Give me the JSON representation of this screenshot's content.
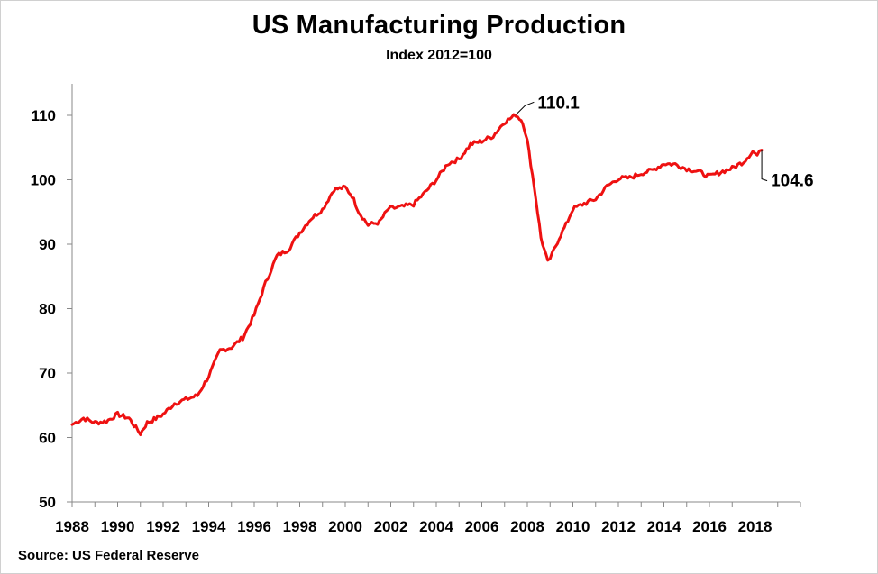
{
  "title": "US Manufacturing Production",
  "subtitle": "Index 2012=100",
  "source": "Source: US Federal Reserve",
  "chart_data": {
    "type": "line",
    "title": "US Manufacturing Production",
    "subtitle": "Index 2012=100",
    "xlabel": "",
    "ylabel": "",
    "xlim": [
      1988,
      2020
    ],
    "ylim": [
      50,
      115
    ],
    "y_ticks": [
      50,
      60,
      70,
      80,
      90,
      100,
      110
    ],
    "x_tick_labels": [
      "1988",
      "1990",
      "1992",
      "1994",
      "1996",
      "1998",
      "2000",
      "2002",
      "2004",
      "2006",
      "2008",
      "2010",
      "2012",
      "2014",
      "2016",
      "2018"
    ],
    "grid": false,
    "legend": "none",
    "line_color": "#ee1111",
    "series": [
      {
        "x": [
          1988.0,
          1988.5,
          1989.0,
          1989.5,
          1990.0,
          1990.5,
          1990.8,
          1991.0,
          1991.3,
          1991.6,
          1992.0,
          1992.5,
          1993.0,
          1993.5,
          1994.0,
          1994.5,
          1995.0,
          1995.5,
          1996.0,
          1996.5,
          1997.0,
          1997.5,
          1998.0,
          1998.5,
          1999.0,
          1999.5,
          2000.0,
          2000.3,
          2000.6,
          2001.0,
          2001.5,
          2001.9,
          2002.5,
          2003.0,
          2003.5,
          2004.0,
          2004.5,
          2005.0,
          2005.5,
          2006.0,
          2006.5,
          2007.0,
          2007.3,
          2007.5,
          2007.8,
          2008.0,
          2008.3,
          2008.6,
          2008.9,
          2009.1,
          2009.4,
          2009.7,
          2010.0,
          2010.5,
          2011.0,
          2011.5,
          2012.0,
          2012.5,
          2013.0,
          2013.5,
          2014.0,
          2014.5,
          2015.0,
          2015.5,
          2016.0,
          2016.5,
          2017.0,
          2017.5,
          2017.9,
          2018.1,
          2018.3
        ],
        "y": [
          62.0,
          63.0,
          62.3,
          62.5,
          63.6,
          63.0,
          61.5,
          60.6,
          62.3,
          62.8,
          63.6,
          65.3,
          65.9,
          66.5,
          69.5,
          73.5,
          74.0,
          75.5,
          79.0,
          84.0,
          88.2,
          89.2,
          91.8,
          94.0,
          95.4,
          98.5,
          98.8,
          97.5,
          95.0,
          93.0,
          93.4,
          95.5,
          95.8,
          96.2,
          98.0,
          100.0,
          102.5,
          103.2,
          105.5,
          106.0,
          106.8,
          109.0,
          109.6,
          110.1,
          109.0,
          106.0,
          99.0,
          91.0,
          87.2,
          88.5,
          91.0,
          93.0,
          95.5,
          96.3,
          97.0,
          99.0,
          100.2,
          100.3,
          101.0,
          101.5,
          102.5,
          102.4,
          101.7,
          101.3,
          100.5,
          101.2,
          101.8,
          102.8,
          104.4,
          103.8,
          104.6
        ]
      }
    ],
    "annotations": [
      {
        "x": 2007.5,
        "y": 110.1,
        "text": "110.1"
      },
      {
        "x": 2018.3,
        "y": 104.6,
        "text": "104.6"
      }
    ]
  }
}
